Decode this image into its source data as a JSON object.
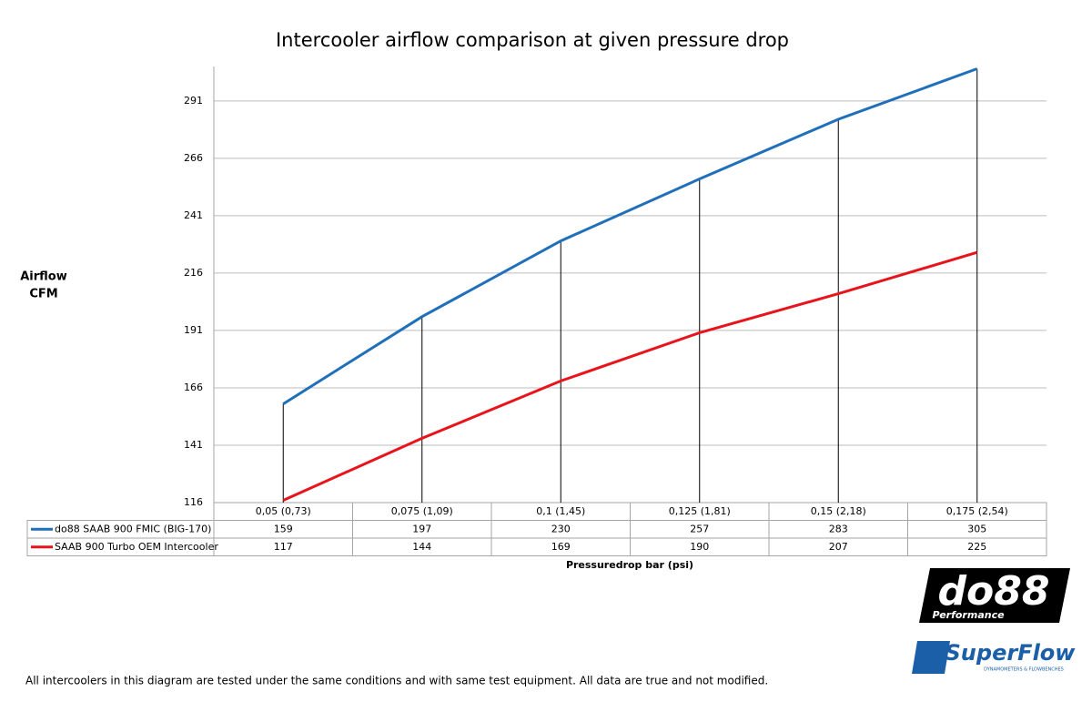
{
  "chart_data": {
    "type": "line",
    "title": "Intercooler airflow comparison at given pressure drop",
    "y_label": [
      "Airflow",
      "CFM"
    ],
    "x_label": "Pressuredrop bar (psi)",
    "categories": [
      "0,05 (0,73)",
      "0,075 (1,09)",
      "0,1 (1,45)",
      "0,125 (1,81)",
      "0,15 (2,18)",
      "0,175 (2,54)"
    ],
    "series": [
      {
        "name": "do88 SAAB 900 FMIC (BIG-170)",
        "color": "#1f6fba",
        "values": [
          159,
          197,
          230,
          257,
          283,
          305
        ]
      },
      {
        "name": "SAAB 900 Turbo OEM Intercooler",
        "color": "#e8141b",
        "values": [
          117,
          144,
          169,
          190,
          207,
          225
        ]
      }
    ],
    "ylim": [
      116,
      306
    ],
    "yticks": [
      116,
      141,
      166,
      191,
      216,
      241,
      266,
      291
    ],
    "grid": true,
    "drop_lines": true
  },
  "footnote": "All intercoolers in this diagram are tested under the same conditions and with same test equipment. All data are true and not modified.",
  "logos": {
    "do88": "do88",
    "performance": "Performance",
    "superflow": "SuperFlow",
    "superflow_sub": "DYNAMOMETERS & FLOWBENCHES"
  }
}
